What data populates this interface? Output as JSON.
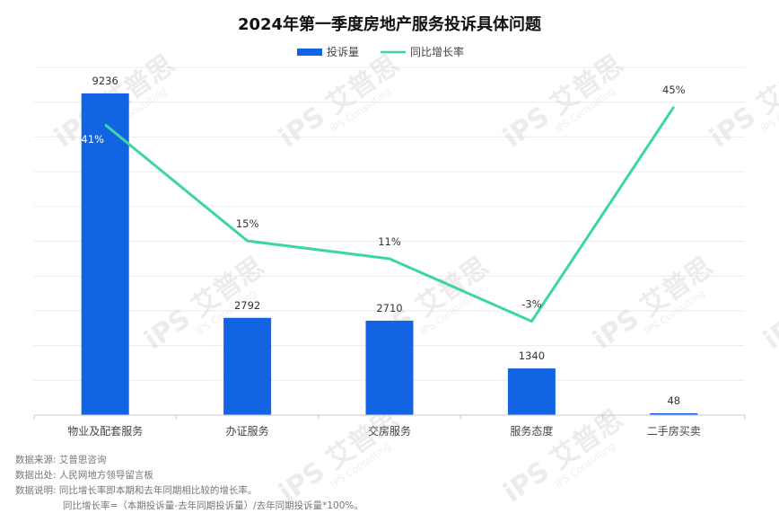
{
  "chart_data": {
    "type": "bar",
    "title": "2024年第一季度房地产服务投诉具体问题",
    "categories": [
      "物业及配套服务",
      "办证服务",
      "交房服务",
      "服务态度",
      "二手房买卖"
    ],
    "series": [
      {
        "name": "投诉量",
        "kind": "bar",
        "values": [
          9236,
          2792,
          2710,
          1340,
          48
        ],
        "labels": [
          "9236",
          "2792",
          "2710",
          "1340",
          "48"
        ],
        "color": "#1264e3"
      },
      {
        "name": "同比增长率",
        "kind": "line",
        "axis": "secondary",
        "values": [
          41,
          15,
          11,
          -3,
          45
        ],
        "labels": [
          "41%",
          "15%",
          "11%",
          "-3%",
          "45%"
        ],
        "color": "#3dd6a0"
      }
    ],
    "ylim": [
      0,
      9236
    ],
    "y2lim": [
      -24,
      48
    ],
    "grid": true,
    "legend_position": "top-center"
  },
  "watermark": {
    "brand": "艾普思",
    "sub": "IPS Consulting"
  },
  "notes": [
    {
      "label": "数据来源:",
      "text": "艾普思咨询"
    },
    {
      "label": "数据出处:",
      "text": "人民网地方领导留言板"
    },
    {
      "label": "数据说明:",
      "text": "同比增长率即本期和去年同期相比较的增长率。"
    },
    {
      "label": "",
      "text": "同比增长率=（本期投诉量-去年同期投诉量）/去年同期投诉量*100%。"
    }
  ]
}
